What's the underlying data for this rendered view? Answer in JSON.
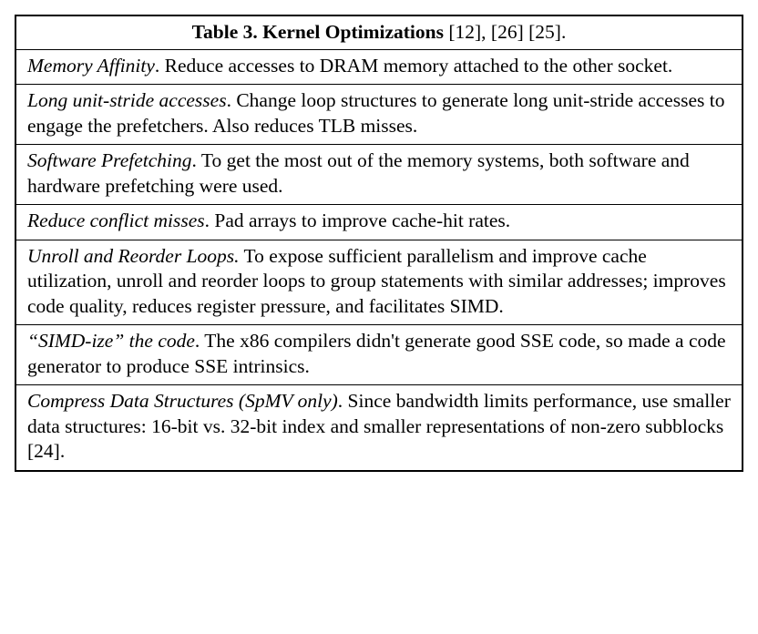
{
  "table": {
    "title_prefix": "Table 3. Kernel Optimizations",
    "citations": " [12], [26] [25].",
    "rows": [
      {
        "term": "Memory Affinity",
        "desc": ". Reduce accesses to DRAM memory attached to the other socket."
      },
      {
        "term": "Long unit-stride accesses",
        "desc": ". Change loop structures to generate long unit-stride accesses to engage the prefetchers. Also reduces TLB misses."
      },
      {
        "term": "Software Prefetching",
        "desc": ". To get the most out of the memory systems, both software and hardware prefetching were used."
      },
      {
        "term": "Reduce conflict misses",
        "desc": ". Pad arrays to improve cache-hit rates."
      },
      {
        "term": "Unroll and Reorder Loops.",
        "desc": " To expose sufficient parallelism and improve cache utilization, unroll and reorder loops to group statements with similar addresses; improves code quality, reduces register pressure, and facilitates SIMD."
      },
      {
        "term": "“SIMD-ize” the code",
        "desc": ". The x86 compilers didn't generate good SSE code, so made a code generator to produce SSE intrinsics."
      },
      {
        "term": "Compress Data Structures (SpMV only)",
        "desc": ". Since bandwidth limits performance, use smaller data structures: 16-bit vs. 32-bit index and smaller representations of non-zero subblocks [24]."
      }
    ]
  }
}
